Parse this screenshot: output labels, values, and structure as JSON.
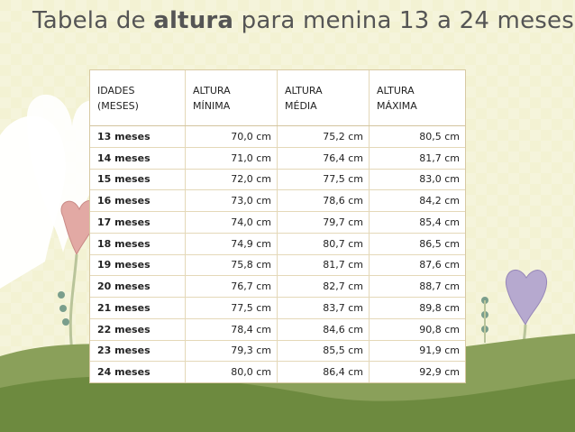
{
  "title": {
    "prefix": "Tabela de ",
    "bold": "altura",
    "suffix": " para menina 13 a 24 meses"
  },
  "table": {
    "headers": [
      {
        "line1": "IDADES",
        "line2": "(MESES)"
      },
      {
        "line1": "ALTURA",
        "line2": "MÍNIMA"
      },
      {
        "line1": "ALTURA",
        "line2": "MÉDIA"
      },
      {
        "line1": "ALTURA",
        "line2": "MÁXIMA"
      }
    ],
    "rows": [
      [
        "13 meses",
        "70,0 cm",
        "75,2 cm",
        "80,5 cm"
      ],
      [
        "14 meses",
        "71,0 cm",
        "76,4 cm",
        "81,7 cm"
      ],
      [
        "15 meses",
        "72,0 cm",
        "77,5 cm",
        "83,0 cm"
      ],
      [
        "16 meses",
        "73,0 cm",
        "78,6 cm",
        "84,2 cm"
      ],
      [
        "17 meses",
        "74,0 cm",
        "79,7 cm",
        "85,4 cm"
      ],
      [
        "18 meses",
        "74,9 cm",
        "80,7 cm",
        "86,5 cm"
      ],
      [
        "19 meses",
        "75,8 cm",
        "81,7 cm",
        "87,6 cm"
      ],
      [
        "20 meses",
        "76,7 cm",
        "82,7 cm",
        "88,7 cm"
      ],
      [
        "21 meses",
        "77,5 cm",
        "83,7 cm",
        "89,8 cm"
      ],
      [
        "22 meses",
        "78,4 cm",
        "84,6 cm",
        "90,8 cm"
      ],
      [
        "23 meses",
        "79,3 cm",
        "85,5 cm",
        "91,9 cm"
      ],
      [
        "24 meses",
        "80,0 cm",
        "86,4 cm",
        "92,9 cm"
      ]
    ]
  },
  "colors": {
    "background": "#f3f2d3",
    "hill_back": "#8aa05a",
    "hill_front": "#6d8a3f",
    "heart_pink": "#e2a9a4",
    "heart_lavender": "#b6a9cf",
    "stem": "#7a9e8c"
  }
}
